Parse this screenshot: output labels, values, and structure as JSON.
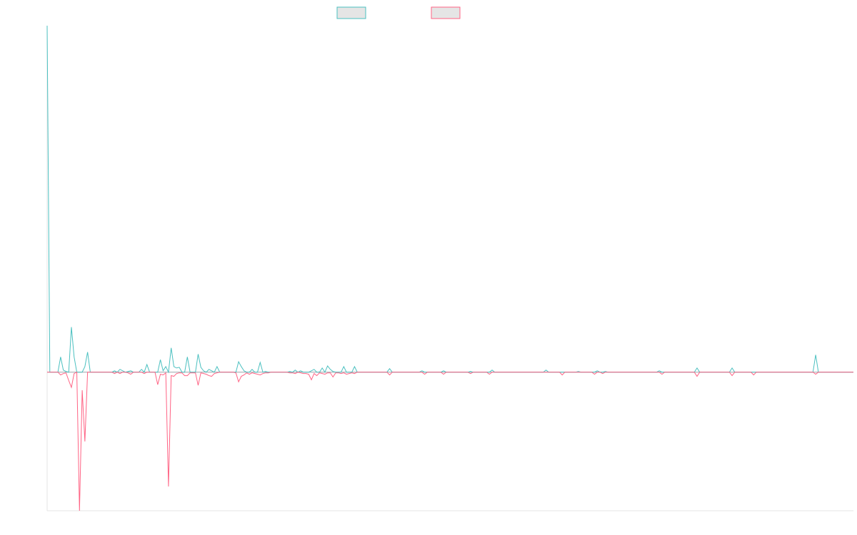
{
  "chart_data": {
    "type": "line",
    "title": "",
    "xlabel": "",
    "ylabel": "",
    "x_count": 300,
    "ylim": [
      -2000,
      5000
    ],
    "grid": false,
    "legend_placement": "top",
    "series": [
      {
        "legend_label": "",
        "color": "#4bc0c0",
        "fill": "#e5e5e5",
        "points": [
          [
            0,
            5000
          ],
          [
            1,
            0
          ],
          [
            2,
            0
          ],
          [
            3,
            0
          ],
          [
            4,
            0
          ],
          [
            5,
            220
          ],
          [
            6,
            30
          ],
          [
            7,
            10
          ],
          [
            8,
            0
          ],
          [
            9,
            650
          ],
          [
            10,
            220
          ],
          [
            11,
            0
          ],
          [
            12,
            0
          ],
          [
            13,
            0
          ],
          [
            14,
            80
          ],
          [
            15,
            290
          ],
          [
            16,
            0
          ],
          [
            17,
            0
          ],
          [
            24,
            0
          ],
          [
            25,
            20
          ],
          [
            26,
            0
          ],
          [
            27,
            40
          ],
          [
            28,
            20
          ],
          [
            29,
            0
          ],
          [
            30,
            10
          ],
          [
            31,
            20
          ],
          [
            32,
            0
          ],
          [
            33,
            0
          ],
          [
            34,
            0
          ],
          [
            35,
            40
          ],
          [
            36,
            0
          ],
          [
            37,
            110
          ],
          [
            38,
            0
          ],
          [
            39,
            0
          ],
          [
            40,
            0
          ],
          [
            41,
            0
          ],
          [
            42,
            180
          ],
          [
            43,
            20
          ],
          [
            44,
            80
          ],
          [
            45,
            0
          ],
          [
            46,
            350
          ],
          [
            47,
            80
          ],
          [
            48,
            60
          ],
          [
            49,
            70
          ],
          [
            50,
            0
          ],
          [
            51,
            0
          ],
          [
            52,
            220
          ],
          [
            53,
            0
          ],
          [
            54,
            0
          ],
          [
            55,
            0
          ],
          [
            56,
            260
          ],
          [
            57,
            70
          ],
          [
            58,
            20
          ],
          [
            59,
            0
          ],
          [
            60,
            40
          ],
          [
            61,
            20
          ],
          [
            62,
            0
          ],
          [
            63,
            80
          ],
          [
            70,
            0
          ],
          [
            71,
            150
          ],
          [
            72,
            80
          ],
          [
            73,
            20
          ],
          [
            74,
            0
          ],
          [
            75,
            0
          ],
          [
            76,
            40
          ],
          [
            77,
            0
          ],
          [
            78,
            0
          ],
          [
            79,
            140
          ],
          [
            80,
            0
          ],
          [
            81,
            10
          ],
          [
            82,
            0
          ],
          [
            89,
            0
          ],
          [
            90,
            10
          ],
          [
            91,
            0
          ],
          [
            92,
            30
          ],
          [
            93,
            0
          ],
          [
            94,
            20
          ],
          [
            95,
            0
          ],
          [
            96,
            0
          ],
          [
            97,
            0
          ],
          [
            98,
            20
          ],
          [
            99,
            40
          ],
          [
            100,
            0
          ],
          [
            101,
            0
          ],
          [
            102,
            60
          ],
          [
            103,
            0
          ],
          [
            104,
            90
          ],
          [
            105,
            40
          ],
          [
            106,
            10
          ],
          [
            107,
            0
          ],
          [
            108,
            0
          ],
          [
            109,
            0
          ],
          [
            110,
            80
          ],
          [
            111,
            0
          ],
          [
            112,
            0
          ],
          [
            113,
            0
          ],
          [
            114,
            80
          ],
          [
            115,
            0
          ],
          [
            126,
            0
          ],
          [
            127,
            50
          ],
          [
            128,
            0
          ],
          [
            138,
            0
          ],
          [
            139,
            20
          ],
          [
            140,
            0
          ],
          [
            146,
            0
          ],
          [
            147,
            20
          ],
          [
            148,
            0
          ],
          [
            156,
            0
          ],
          [
            157,
            10
          ],
          [
            158,
            0
          ],
          [
            164,
            0
          ],
          [
            165,
            30
          ],
          [
            166,
            0
          ],
          [
            184,
            0
          ],
          [
            185,
            30
          ],
          [
            186,
            0
          ],
          [
            196,
            0
          ],
          [
            197,
            10
          ],
          [
            198,
            0
          ],
          [
            203,
            0
          ],
          [
            204,
            20
          ],
          [
            205,
            0
          ],
          [
            206,
            0
          ],
          [
            207,
            10
          ],
          [
            208,
            0
          ],
          [
            226,
            0
          ],
          [
            227,
            20
          ],
          [
            228,
            0
          ],
          [
            240,
            0
          ],
          [
            241,
            60
          ],
          [
            242,
            0
          ],
          [
            253,
            0
          ],
          [
            254,
            60
          ],
          [
            255,
            0
          ],
          [
            284,
            0
          ],
          [
            285,
            250
          ],
          [
            286,
            0
          ],
          [
            299,
            0
          ]
        ]
      },
      {
        "legend_label": "",
        "color": "#ff6384",
        "fill": "#e5e5e5",
        "points": [
          [
            0,
            0
          ],
          [
            1,
            0
          ],
          [
            2,
            0
          ],
          [
            3,
            0
          ],
          [
            4,
            0
          ],
          [
            5,
            -40
          ],
          [
            6,
            -20
          ],
          [
            7,
            -10
          ],
          [
            8,
            -120
          ],
          [
            9,
            -220
          ],
          [
            10,
            -20
          ],
          [
            11,
            0
          ],
          [
            12,
            -2000
          ],
          [
            13,
            -260
          ],
          [
            14,
            -1000
          ],
          [
            15,
            0
          ],
          [
            16,
            0
          ],
          [
            24,
            0
          ],
          [
            25,
            -20
          ],
          [
            26,
            0
          ],
          [
            27,
            -20
          ],
          [
            28,
            0
          ],
          [
            29,
            0
          ],
          [
            30,
            -10
          ],
          [
            31,
            -30
          ],
          [
            32,
            0
          ],
          [
            33,
            0
          ],
          [
            34,
            0
          ],
          [
            35,
            0
          ],
          [
            36,
            -20
          ],
          [
            37,
            0
          ],
          [
            38,
            0
          ],
          [
            39,
            0
          ],
          [
            40,
            0
          ],
          [
            41,
            -180
          ],
          [
            42,
            -30
          ],
          [
            43,
            -40
          ],
          [
            44,
            -10
          ],
          [
            45,
            -1650
          ],
          [
            46,
            -50
          ],
          [
            47,
            -60
          ],
          [
            48,
            -20
          ],
          [
            49,
            -10
          ],
          [
            50,
            -10
          ],
          [
            51,
            -50
          ],
          [
            52,
            -50
          ],
          [
            53,
            -10
          ],
          [
            54,
            -10
          ],
          [
            55,
            -10
          ],
          [
            56,
            -190
          ],
          [
            57,
            -10
          ],
          [
            58,
            -20
          ],
          [
            59,
            -30
          ],
          [
            60,
            -50
          ],
          [
            61,
            -60
          ],
          [
            62,
            -20
          ],
          [
            63,
            -10
          ],
          [
            70,
            -10
          ],
          [
            71,
            -140
          ],
          [
            72,
            -60
          ],
          [
            73,
            -40
          ],
          [
            74,
            -10
          ],
          [
            75,
            -30
          ],
          [
            76,
            -10
          ],
          [
            77,
            -20
          ],
          [
            78,
            -30
          ],
          [
            79,
            -40
          ],
          [
            80,
            -20
          ],
          [
            81,
            -10
          ],
          [
            82,
            -10
          ],
          [
            89,
            0
          ],
          [
            90,
            -10
          ],
          [
            91,
            -10
          ],
          [
            92,
            -20
          ],
          [
            93,
            0
          ],
          [
            94,
            -10
          ],
          [
            95,
            -20
          ],
          [
            96,
            -20
          ],
          [
            97,
            -30
          ],
          [
            98,
            -110
          ],
          [
            99,
            -20
          ],
          [
            100,
            -50
          ],
          [
            101,
            -10
          ],
          [
            102,
            -20
          ],
          [
            103,
            -30
          ],
          [
            104,
            -10
          ],
          [
            105,
            -10
          ],
          [
            106,
            -70
          ],
          [
            107,
            -10
          ],
          [
            108,
            -10
          ],
          [
            109,
            -20
          ],
          [
            110,
            -10
          ],
          [
            111,
            -30
          ],
          [
            112,
            -20
          ],
          [
            113,
            -10
          ],
          [
            114,
            -20
          ],
          [
            115,
            0
          ],
          [
            126,
            0
          ],
          [
            127,
            -40
          ],
          [
            128,
            0
          ],
          [
            139,
            0
          ],
          [
            140,
            -30
          ],
          [
            141,
            0
          ],
          [
            146,
            0
          ],
          [
            147,
            -30
          ],
          [
            148,
            0
          ],
          [
            156,
            0
          ],
          [
            157,
            -20
          ],
          [
            158,
            0
          ],
          [
            163,
            0
          ],
          [
            164,
            -30
          ],
          [
            165,
            0
          ],
          [
            190,
            0
          ],
          [
            191,
            -40
          ],
          [
            192,
            0
          ],
          [
            202,
            0
          ],
          [
            203,
            -30
          ],
          [
            204,
            0
          ],
          [
            205,
            0
          ],
          [
            206,
            -20
          ],
          [
            207,
            0
          ],
          [
            227,
            0
          ],
          [
            228,
            -30
          ],
          [
            229,
            0
          ],
          [
            240,
            0
          ],
          [
            241,
            -60
          ],
          [
            242,
            0
          ],
          [
            253,
            0
          ],
          [
            254,
            -50
          ],
          [
            255,
            0
          ],
          [
            261,
            0
          ],
          [
            262,
            -40
          ],
          [
            263,
            0
          ],
          [
            284,
            0
          ],
          [
            285,
            -30
          ],
          [
            286,
            0
          ],
          [
            299,
            0
          ]
        ]
      }
    ]
  }
}
